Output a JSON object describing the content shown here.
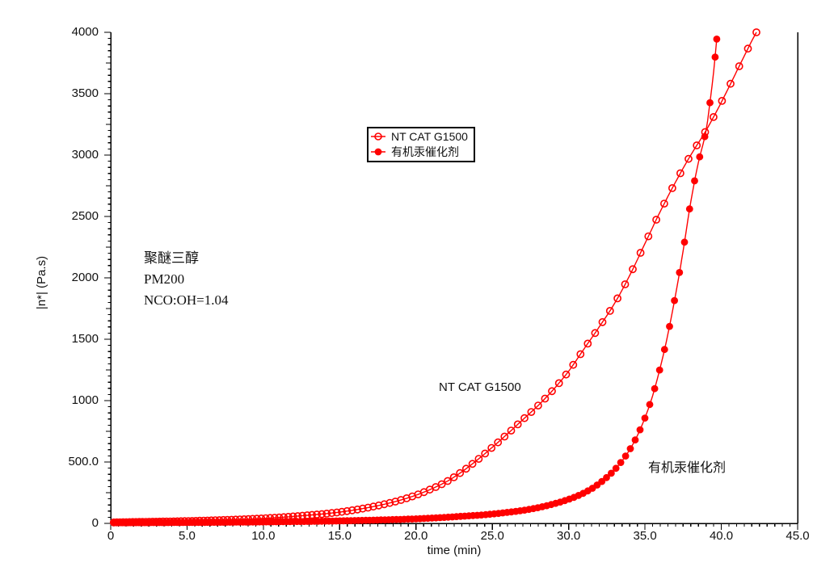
{
  "figure": {
    "background": "#ffffff",
    "series_color": "#ff0000",
    "axis_color": "#000000",
    "text_color": "#111111"
  },
  "chart_data": {
    "type": "line",
    "title": "",
    "xlabel": "time (min)",
    "ylabel": "|n*| (Pa.s)",
    "xlim": [
      0,
      45
    ],
    "ylim": [
      0,
      4000
    ],
    "grid": false,
    "frame_sides": [
      "left",
      "bottom",
      "right"
    ],
    "x_ticks": {
      "values": [
        0,
        5,
        10,
        15,
        20,
        25,
        30,
        35,
        40,
        45
      ],
      "labels": [
        "0",
        "5.0",
        "10.0",
        "15.0",
        "20.0",
        "25.0",
        "30.0",
        "35.0",
        "40.0",
        "45.0"
      ],
      "minor_step": 0.5
    },
    "y_ticks": {
      "values": [
        0,
        500,
        1000,
        1500,
        2000,
        2500,
        3000,
        3500,
        4000
      ],
      "labels": [
        "0",
        "500.0",
        "1000",
        "1500",
        "2000",
        "2500",
        "3000",
        "3500",
        "4000"
      ],
      "minor_step": 50,
      "medium_step": 250
    },
    "legend": {
      "position": "upper-center",
      "border": "#000000"
    },
    "annotations": [
      "聚醚三醇",
      "PM200",
      "NCO:OH=1.04"
    ],
    "curve_labels": [
      "NT CAT G1500",
      "有机汞催化剂"
    ],
    "series": [
      {
        "id": "nt-cat-g1500",
        "name": "NT CAT G1500",
        "color": "#ff0000",
        "marker": "open-circle",
        "marker_step": {
          "base": 0.2,
          "growth": 0.009
        },
        "points": [
          [
            0.2,
            8
          ],
          [
            1,
            10
          ],
          [
            2,
            12
          ],
          [
            3,
            14
          ],
          [
            4,
            16
          ],
          [
            5,
            19
          ],
          [
            6,
            22
          ],
          [
            7,
            26
          ],
          [
            8,
            30
          ],
          [
            9,
            35
          ],
          [
            10,
            41
          ],
          [
            11,
            48
          ],
          [
            12,
            57
          ],
          [
            13,
            67
          ],
          [
            14,
            78
          ],
          [
            15,
            92
          ],
          [
            16,
            110
          ],
          [
            17,
            132
          ],
          [
            18,
            158
          ],
          [
            19,
            190
          ],
          [
            20,
            230
          ],
          [
            21,
            280
          ],
          [
            22,
            340
          ],
          [
            23,
            420
          ],
          [
            24,
            515
          ],
          [
            25,
            620
          ],
          [
            26,
            730
          ],
          [
            27,
            845
          ],
          [
            28,
            960
          ],
          [
            29,
            1090
          ],
          [
            30,
            1240
          ],
          [
            31,
            1420
          ],
          [
            32,
            1600
          ],
          [
            33,
            1790
          ],
          [
            34,
            2020
          ],
          [
            35,
            2280
          ],
          [
            36,
            2540
          ],
          [
            37,
            2780
          ],
          [
            38,
            3000
          ],
          [
            39,
            3200
          ],
          [
            40,
            3430
          ],
          [
            41,
            3680
          ],
          [
            42,
            3930
          ],
          [
            42.3,
            4000
          ]
        ]
      },
      {
        "id": "organic-mercury-catalyst",
        "name": "有机汞催化剂",
        "color": "#ff0000",
        "marker": "filled-circle",
        "marker_step": {
          "base": 0.18,
          "growth": 0.004
        },
        "points": [
          [
            0.2,
            5
          ],
          [
            2,
            6
          ],
          [
            4,
            7
          ],
          [
            6,
            8
          ],
          [
            8,
            10
          ],
          [
            10,
            12
          ],
          [
            12,
            15
          ],
          [
            14,
            18
          ],
          [
            16,
            23
          ],
          [
            18,
            29
          ],
          [
            20,
            37
          ],
          [
            21,
            43
          ],
          [
            22,
            50
          ],
          [
            23,
            58
          ],
          [
            24,
            66
          ],
          [
            25,
            76
          ],
          [
            26,
            90
          ],
          [
            27,
            106
          ],
          [
            28,
            128
          ],
          [
            29,
            158
          ],
          [
            30,
            196
          ],
          [
            30.5,
            220
          ],
          [
            31,
            248
          ],
          [
            31.5,
            282
          ],
          [
            32,
            325
          ],
          [
            32.5,
            375
          ],
          [
            33,
            435
          ],
          [
            33.5,
            510
          ],
          [
            34,
            600
          ],
          [
            34.5,
            715
          ],
          [
            35,
            860
          ],
          [
            35.5,
            1040
          ],
          [
            36,
            1270
          ],
          [
            36.5,
            1540
          ],
          [
            37,
            1860
          ],
          [
            37.5,
            2220
          ],
          [
            38,
            2620
          ],
          [
            38.5,
            2940
          ],
          [
            39,
            3200
          ],
          [
            39.3,
            3470
          ],
          [
            39.5,
            3680
          ],
          [
            39.7,
            3945
          ]
        ]
      }
    ]
  }
}
